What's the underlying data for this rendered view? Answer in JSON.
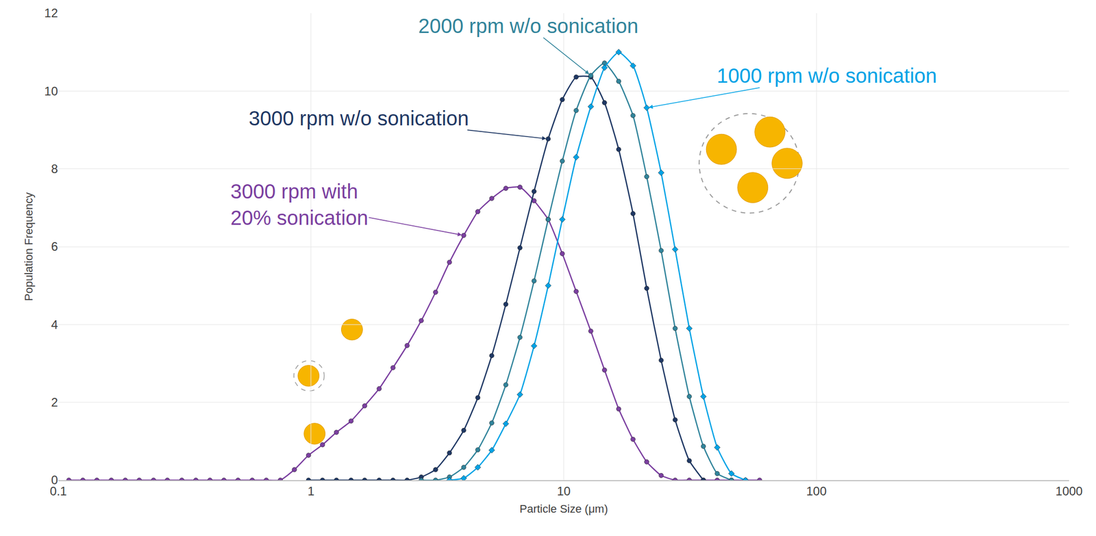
{
  "chart_data": {
    "type": "line",
    "x_label": "Particle Size (μm)",
    "y_label": "Population Frequency",
    "log": "x",
    "grid": true,
    "xlim": [
      0.1,
      1000
    ],
    "xticks": [
      0.1,
      1,
      10,
      100,
      1000
    ],
    "ylim": [
      0,
      12
    ],
    "yticks": [
      0,
      2,
      4,
      6,
      8,
      10,
      12
    ],
    "x": [
      0.11,
      0.125,
      0.142,
      0.162,
      0.184,
      0.209,
      0.238,
      0.27,
      0.308,
      0.35,
      0.398,
      0.452,
      0.514,
      0.585,
      0.665,
      0.756,
      0.859,
      0.977,
      1.11,
      1.26,
      1.44,
      1.63,
      1.86,
      2.11,
      2.4,
      2.73,
      3.11,
      3.53,
      4.02,
      4.57,
      5.19,
      5.9,
      6.71,
      7.63,
      8.68,
      9.87,
      11.2,
      12.8,
      14.5,
      16.5,
      18.8,
      21.3,
      24.3,
      27.6,
      31.4,
      35.7,
      40.5,
      46.1,
      52.4,
      59.6
    ],
    "series": [
      {
        "name": "3000 rpm with 20% sonication",
        "color": "#7b3fa0",
        "marker": "circle",
        "values": [
          0,
          0,
          0,
          0,
          0,
          0,
          0,
          0,
          0,
          0,
          0,
          0,
          0,
          0,
          0,
          0,
          0.27,
          0.64,
          0.91,
          1.23,
          1.52,
          1.91,
          2.35,
          2.89,
          3.46,
          4.1,
          4.83,
          5.6,
          6.29,
          6.9,
          7.24,
          7.5,
          7.53,
          7.18,
          6.7,
          5.82,
          4.85,
          3.83,
          2.83,
          1.83,
          1.05,
          0.47,
          0.12,
          0,
          0,
          0,
          0,
          0,
          0,
          0
        ]
      },
      {
        "name": "3000 rpm w/o sonication",
        "color": "#1f3864",
        "marker": "circle",
        "values": [
          null,
          null,
          null,
          null,
          null,
          null,
          null,
          null,
          null,
          null,
          null,
          null,
          null,
          null,
          null,
          null,
          null,
          0,
          0,
          0,
          0,
          0,
          0,
          0,
          0,
          0.08,
          0.27,
          0.7,
          1.28,
          2.12,
          3.2,
          4.52,
          5.97,
          7.42,
          8.77,
          9.78,
          10.36,
          10.36,
          9.7,
          8.5,
          6.85,
          4.93,
          3.08,
          1.55,
          0.5,
          0,
          null,
          null,
          null,
          null
        ]
      },
      {
        "name": "2000 rpm w/o sonication",
        "color": "#31849b",
        "marker": "circle",
        "values": [
          null,
          null,
          null,
          null,
          null,
          null,
          null,
          null,
          null,
          null,
          null,
          null,
          null,
          null,
          null,
          null,
          null,
          null,
          null,
          null,
          null,
          null,
          null,
          null,
          null,
          0,
          0,
          0.08,
          0.33,
          0.78,
          1.47,
          2.45,
          3.67,
          5.12,
          6.7,
          8.2,
          9.5,
          10.4,
          10.72,
          10.25,
          9.37,
          7.8,
          5.9,
          3.9,
          2.15,
          0.87,
          0.17,
          0,
          null,
          null
        ]
      },
      {
        "name": "1000 rpm w/o sonication",
        "color": "#00a3e6",
        "marker": "diamond",
        "values": [
          null,
          null,
          null,
          null,
          null,
          null,
          null,
          null,
          null,
          null,
          null,
          null,
          null,
          null,
          null,
          null,
          null,
          null,
          null,
          null,
          null,
          null,
          null,
          null,
          null,
          null,
          null,
          0,
          0.05,
          0.33,
          0.77,
          1.45,
          2.2,
          3.45,
          5.0,
          6.7,
          8.3,
          9.6,
          10.6,
          11.0,
          10.65,
          9.57,
          7.9,
          5.93,
          3.9,
          2.15,
          0.84,
          0.17,
          0,
          null
        ]
      }
    ]
  }
}
